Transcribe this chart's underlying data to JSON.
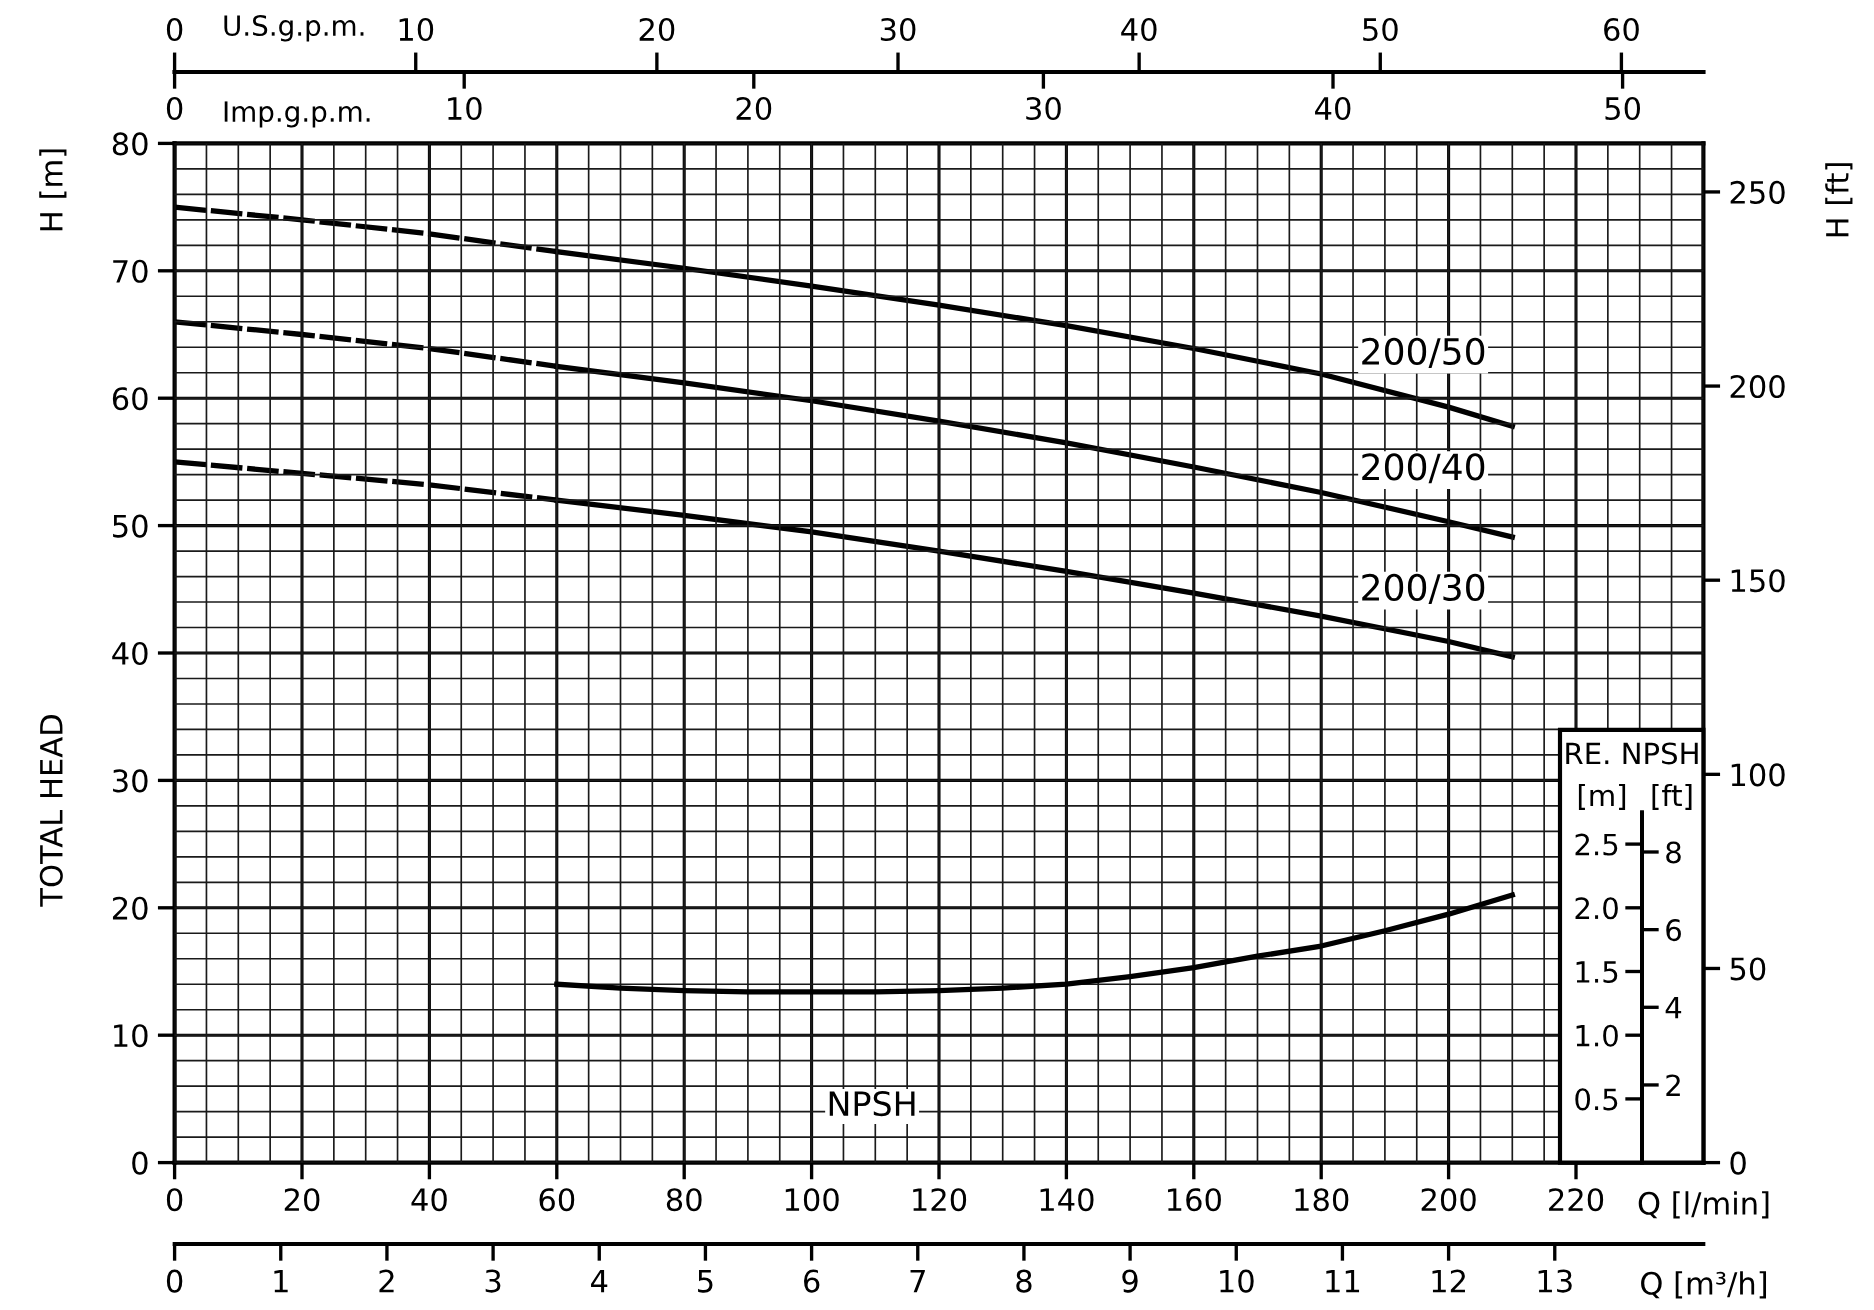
{
  "chart_data": [
    {
      "type": "line",
      "xlabel": "Q [l/min]",
      "xlim": [
        0,
        240
      ],
      "xticks": [
        0,
        20,
        40,
        60,
        80,
        100,
        120,
        140,
        160,
        180,
        200,
        220
      ],
      "x2label": "U.S.g.p.m.",
      "x2lim": [
        0,
        63.4
      ],
      "x2ticks": [
        0,
        10,
        20,
        30,
        40,
        50,
        60
      ],
      "ylabel": "H [m]",
      "ylim": [
        0,
        80
      ],
      "yticks": [
        0,
        10,
        20,
        30,
        40,
        50,
        60,
        70,
        80
      ],
      "y2label": "H [ft]",
      "y2lim": [
        0,
        262.5
      ],
      "y2ticks": [
        0,
        50,
        100,
        150,
        200,
        250
      ],
      "annotations": [
        "TOTAL HEAD"
      ],
      "grid": true,
      "series": [
        {
          "name": "200/50",
          "color": "#000000",
          "line_style": "solid",
          "x": [
            60,
            80,
            100,
            120,
            140,
            160,
            180,
            200,
            210
          ],
          "values": [
            71.5,
            70.2,
            68.8,
            67.3,
            65.7,
            63.9,
            61.9,
            59.3,
            57.8
          ]
        },
        {
          "name": "200/40",
          "color": "#000000",
          "line_style": "solid",
          "x": [
            60,
            80,
            100,
            120,
            140,
            160,
            180,
            200,
            210
          ],
          "values": [
            62.5,
            61.2,
            59.8,
            58.2,
            56.5,
            54.6,
            52.6,
            50.3,
            49.1
          ]
        },
        {
          "name": "200/30",
          "color": "#000000",
          "line_style": "solid",
          "x": [
            60,
            80,
            100,
            120,
            140,
            160,
            180,
            200,
            210
          ],
          "values": [
            52.0,
            50.8,
            49.5,
            48.0,
            46.4,
            44.7,
            42.9,
            40.9,
            39.7
          ]
        },
        {
          "color": "#000000",
          "line_style": "dashed",
          "x": [
            0,
            20,
            40,
            60
          ],
          "values": [
            75,
            74.0,
            72.9,
            71.5
          ]
        },
        {
          "color": "#000000",
          "line_style": "dashed",
          "x": [
            0,
            20,
            40,
            60
          ],
          "values": [
            66,
            65.0,
            63.9,
            62.5
          ]
        },
        {
          "color": "#000000",
          "line_style": "dashed",
          "x": [
            0,
            20,
            40,
            60
          ],
          "values": [
            55,
            54.1,
            53.2,
            52.0
          ]
        }
      ]
    },
    {
      "type": "line",
      "xlabel": "Q [m³/h]",
      "xlim": [
        0,
        14.4
      ],
      "xticks": [
        0,
        1,
        2,
        3,
        4,
        5,
        6,
        7,
        8,
        9,
        10,
        11,
        12,
        13
      ],
      "x2label": "Imp.g.p.m.",
      "x2lim": [
        0,
        52.79
      ],
      "x2ticks": [
        0,
        10,
        20,
        30,
        40,
        50
      ],
      "ylabel": "[m]",
      "ylim": [
        0,
        8
      ],
      "yticks": [
        0.5,
        {
          "value": 1,
          "label": "1.0"
        },
        1.5,
        {
          "value": 2,
          "label": "2.0"
        },
        2.5
      ],
      "y2label": "[ft]",
      "y2lim": [
        0,
        26.25
      ],
      "y2ticks": [
        2,
        4,
        6,
        8
      ],
      "annotations": [
        "RE. NPSH"
      ],
      "grid": true,
      "series": [
        {
          "name": "NPSH",
          "color": "#000000",
          "line_style": "solid",
          "x": [
            3.6,
            4.2,
            4.8,
            5.4,
            6.0,
            6.6,
            7.2,
            7.8,
            8.4,
            9.0,
            9.6,
            10.2,
            10.8,
            11.4,
            12.0,
            12.6
          ],
          "values": [
            1.4,
            1.37,
            1.35,
            1.34,
            1.34,
            1.34,
            1.35,
            1.37,
            1.4,
            1.46,
            1.53,
            1.62,
            1.7,
            1.82,
            1.95,
            2.1
          ]
        }
      ]
    }
  ]
}
